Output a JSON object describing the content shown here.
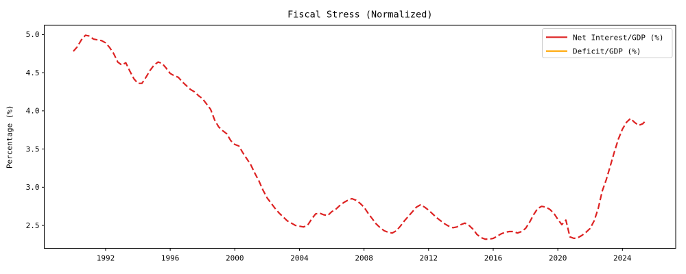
{
  "figure": {
    "background": "#ffffff",
    "text_color": "#000000",
    "legend_border_color": "#cccccc"
  },
  "chart_data": {
    "type": "line",
    "title": "Fiscal Stress (Normalized)",
    "xlabel": "",
    "ylabel": "Percentage (%)",
    "xlim": [
      1988.2,
      2027.3
    ],
    "ylim": [
      2.2,
      5.12
    ],
    "grid": false,
    "legend_position": "upper right",
    "xticks": [
      1992,
      1996,
      2000,
      2004,
      2008,
      2012,
      2016,
      2020,
      2024
    ],
    "xtick_labels": [
      "1992",
      "1996",
      "2000",
      "2004",
      "2008",
      "2012",
      "2016",
      "2020",
      "2024"
    ],
    "yticks": [
      2.5,
      3.0,
      3.5,
      4.0,
      4.5,
      5.0
    ],
    "ytick_labels": [
      "2.5",
      "3.0",
      "3.5",
      "4.0",
      "4.5",
      "5.0"
    ],
    "series": [
      {
        "name": "Net Interest/GDP (%)",
        "color": "#dd2222",
        "line_style": "dashed",
        "x_start": 1990.0,
        "x_step": 0.25,
        "values": [
          4.78,
          4.84,
          4.93,
          4.99,
          4.98,
          4.94,
          4.93,
          4.92,
          4.89,
          4.83,
          4.75,
          4.64,
          4.6,
          4.63,
          4.52,
          4.42,
          4.36,
          4.36,
          4.44,
          4.53,
          4.6,
          4.64,
          4.62,
          4.56,
          4.49,
          4.46,
          4.44,
          4.38,
          4.33,
          4.28,
          4.25,
          4.2,
          4.16,
          4.09,
          4.02,
          3.88,
          3.79,
          3.74,
          3.7,
          3.61,
          3.56,
          3.54,
          3.45,
          3.37,
          3.29,
          3.18,
          3.08,
          2.96,
          2.86,
          2.79,
          2.72,
          2.66,
          2.61,
          2.56,
          2.53,
          2.5,
          2.49,
          2.48,
          2.5,
          2.58,
          2.65,
          2.66,
          2.64,
          2.63,
          2.68,
          2.71,
          2.76,
          2.8,
          2.83,
          2.85,
          2.83,
          2.79,
          2.74,
          2.66,
          2.59,
          2.52,
          2.47,
          2.43,
          2.41,
          2.4,
          2.43,
          2.49,
          2.56,
          2.62,
          2.68,
          2.74,
          2.77,
          2.74,
          2.7,
          2.65,
          2.6,
          2.56,
          2.52,
          2.49,
          2.47,
          2.48,
          2.51,
          2.53,
          2.5,
          2.45,
          2.38,
          2.34,
          2.32,
          2.32,
          2.33,
          2.36,
          2.39,
          2.41,
          2.42,
          2.42,
          2.4,
          2.42,
          2.46,
          2.54,
          2.64,
          2.72,
          2.75,
          2.74,
          2.71,
          2.66,
          2.58,
          2.51,
          2.57,
          2.35,
          2.33,
          2.34,
          2.37,
          2.41,
          2.46,
          2.56,
          2.72,
          2.95,
          3.1,
          3.28,
          3.46,
          3.63,
          3.76,
          3.85,
          3.9,
          3.85,
          3.81,
          3.83,
          3.88
        ]
      },
      {
        "name": "Deficit/GDP (%)",
        "color": "#ffa500",
        "line_style": "solid",
        "x_start": null,
        "x_step": null,
        "values": [],
        "visible_in_plot": false
      }
    ]
  }
}
